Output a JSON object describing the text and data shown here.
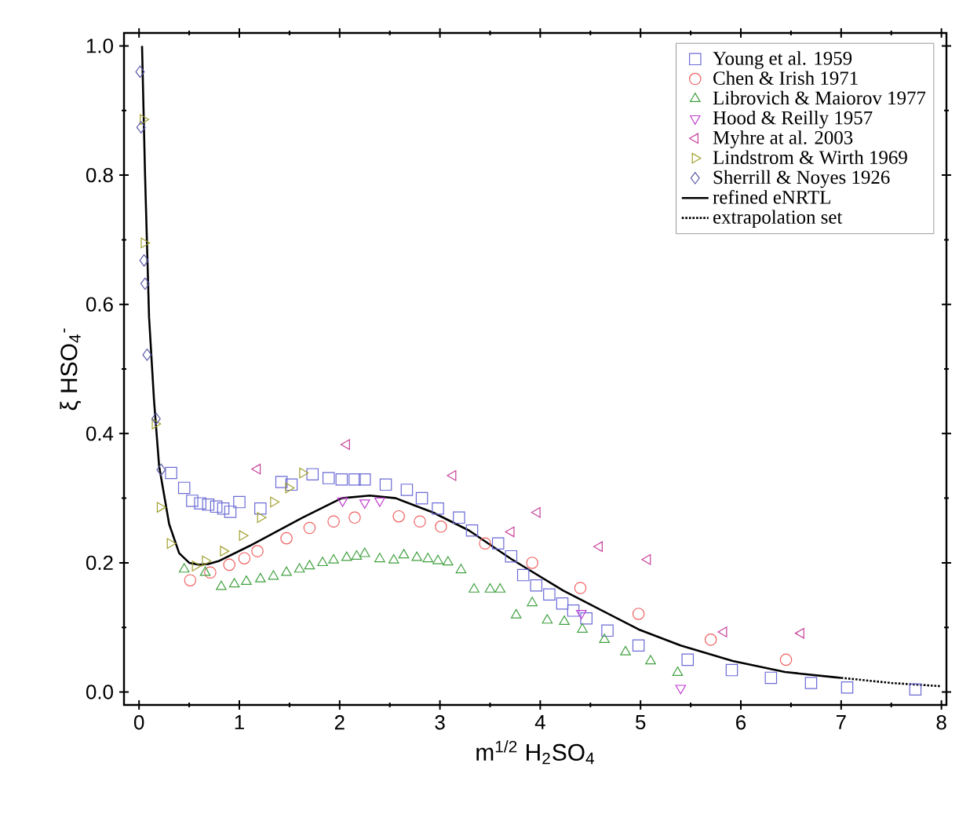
{
  "chart_data": {
    "type": "scatter",
    "xlabel": "m$^{1/2}$ H$_{2}$SO$_{4}$",
    "ylabel": "ξ HSO$_{4}$$^{-}$",
    "xlim": [
      -0.15,
      8.05
    ],
    "ylim": [
      -0.02,
      1.02
    ],
    "xticks": [
      0,
      1,
      2,
      3,
      4,
      5,
      6,
      7,
      8
    ],
    "yticks": [
      {
        "value": 0,
        "label": "0.0"
      },
      {
        "value": 0.2,
        "label": "0.2"
      },
      {
        "value": 0.4,
        "label": "0.4"
      },
      {
        "value": 0.6,
        "label": "0.6"
      },
      {
        "value": 0.8,
        "label": "0.8"
      },
      {
        "value": 1.0,
        "label": "1.0"
      }
    ],
    "legend": "top right",
    "grid": false,
    "series": [
      {
        "name": "Young et al. 1959",
        "color": "#6b6bd6",
        "marker": "square",
        "x": [
          0.32,
          0.45,
          0.53,
          0.61,
          0.69,
          0.77,
          0.84,
          0.91,
          1.0,
          1.21,
          1.42,
          1.52,
          1.73,
          1.89,
          2.02,
          2.15,
          2.25,
          2.46,
          2.67,
          2.82,
          2.98,
          3.19,
          3.32,
          3.58,
          3.71,
          3.83,
          3.96,
          4.09,
          4.22,
          4.33,
          4.46,
          4.67,
          4.98,
          5.47,
          5.91,
          6.3,
          6.7,
          7.06,
          7.74
        ],
        "values": [
          0.339,
          0.316,
          0.296,
          0.292,
          0.29,
          0.287,
          0.284,
          0.279,
          0.294,
          0.284,
          0.325,
          0.321,
          0.337,
          0.331,
          0.329,
          0.329,
          0.329,
          0.321,
          0.313,
          0.3,
          0.284,
          0.27,
          0.25,
          0.23,
          0.21,
          0.181,
          0.165,
          0.151,
          0.137,
          0.126,
          0.114,
          0.095,
          0.072,
          0.05,
          0.034,
          0.022,
          0.014,
          0.007,
          0.004
        ]
      },
      {
        "name": "Chen & Irish 1971",
        "color": "#f06060",
        "marker": "circle",
        "x": [
          0.51,
          0.71,
          0.9,
          1.05,
          1.18,
          1.47,
          1.7,
          1.94,
          2.15,
          2.59,
          2.8,
          3.01,
          3.45,
          3.92,
          4.4,
          4.98,
          5.7,
          6.45
        ],
        "values": [
          0.173,
          0.185,
          0.197,
          0.207,
          0.218,
          0.238,
          0.254,
          0.264,
          0.27,
          0.272,
          0.264,
          0.256,
          0.23,
          0.2,
          0.161,
          0.121,
          0.081,
          0.05
        ]
      },
      {
        "name": "Librovich & Maiorov 1977",
        "color": "#40a040",
        "marker": "triangle",
        "x": [
          0.45,
          0.66,
          0.82,
          0.95,
          1.07,
          1.21,
          1.34,
          1.47,
          1.6,
          1.7,
          1.83,
          1.94,
          2.07,
          2.17,
          2.25,
          2.4,
          2.54,
          2.64,
          2.77,
          2.88,
          2.98,
          3.08,
          3.21,
          3.34,
          3.5,
          3.6,
          3.76,
          3.92,
          4.07,
          4.24,
          4.42,
          4.64,
          4.85,
          5.1,
          5.37
        ],
        "values": [
          0.19,
          0.185,
          0.163,
          0.167,
          0.171,
          0.175,
          0.179,
          0.185,
          0.19,
          0.195,
          0.2,
          0.204,
          0.208,
          0.21,
          0.214,
          0.206,
          0.204,
          0.212,
          0.208,
          0.206,
          0.203,
          0.201,
          0.189,
          0.159,
          0.159,
          0.159,
          0.119,
          0.138,
          0.111,
          0.109,
          0.097,
          0.081,
          0.062,
          0.048,
          0.03
        ]
      },
      {
        "name": "Hood & Reilly 1957",
        "color": "#c040d0",
        "marker": "triangle-down",
        "x": [
          2.03,
          2.25,
          2.4,
          4.41,
          5.4
        ],
        "values": [
          0.296,
          0.293,
          0.296,
          0.122,
          0.006
        ]
      },
      {
        "name": "Myhre at al. 2003",
        "color": "#c8409a",
        "marker": "triangle-left",
        "x": [
          1.18,
          2.07,
          3.13,
          3.71,
          3.97,
          4.59,
          5.07,
          5.83,
          6.6
        ],
        "values": [
          0.345,
          0.383,
          0.335,
          0.248,
          0.278,
          0.225,
          0.205,
          0.093,
          0.091
        ]
      },
      {
        "name": "Lindstrom & Wirth 1969",
        "color": "#a0a030",
        "marker": "triangle-right",
        "x": [
          0.04,
          0.05,
          0.16,
          0.21,
          0.31,
          0.56,
          0.66,
          0.84,
          1.03,
          1.21,
          1.34,
          1.49,
          1.63
        ],
        "values": [
          0.886,
          0.695,
          0.415,
          0.286,
          0.23,
          0.195,
          0.203,
          0.218,
          0.242,
          0.27,
          0.294,
          0.316,
          0.339
        ]
      },
      {
        "name": "Sherrill & Noyes 1926",
        "color": "#5a5aa8",
        "marker": "diamond",
        "x": [
          0.01,
          0.02,
          0.05,
          0.06,
          0.08,
          0.17,
          0.22
        ],
        "values": [
          0.96,
          0.874,
          0.668,
          0.632,
          0.522,
          0.423,
          0.344
        ]
      },
      {
        "name": "refined eNRTL",
        "type": "line",
        "color": "#000000",
        "line_style": "solid",
        "marker": "none",
        "x": [
          0.03,
          0.06,
          0.1,
          0.15,
          0.2,
          0.3,
          0.4,
          0.5,
          0.6,
          0.69,
          0.8,
          1.1,
          1.63,
          2.02,
          2.3,
          2.56,
          2.93,
          3.29,
          3.71,
          4.23,
          4.98,
          5.4,
          5.92,
          6.44,
          6.93,
          7.0
        ],
        "values": [
          1.0,
          0.8,
          0.58,
          0.45,
          0.35,
          0.26,
          0.215,
          0.2,
          0.197,
          0.198,
          0.203,
          0.226,
          0.27,
          0.3,
          0.304,
          0.3,
          0.278,
          0.25,
          0.206,
          0.157,
          0.097,
          0.072,
          0.048,
          0.031,
          0.023,
          0.022
        ]
      },
      {
        "name": "extrapolation set",
        "type": "line",
        "color": "#000000",
        "line_style": "dotted",
        "marker": "none",
        "x": [
          7.0,
          7.5,
          8.0
        ],
        "values": [
          0.022,
          0.014,
          0.009
        ]
      }
    ]
  }
}
